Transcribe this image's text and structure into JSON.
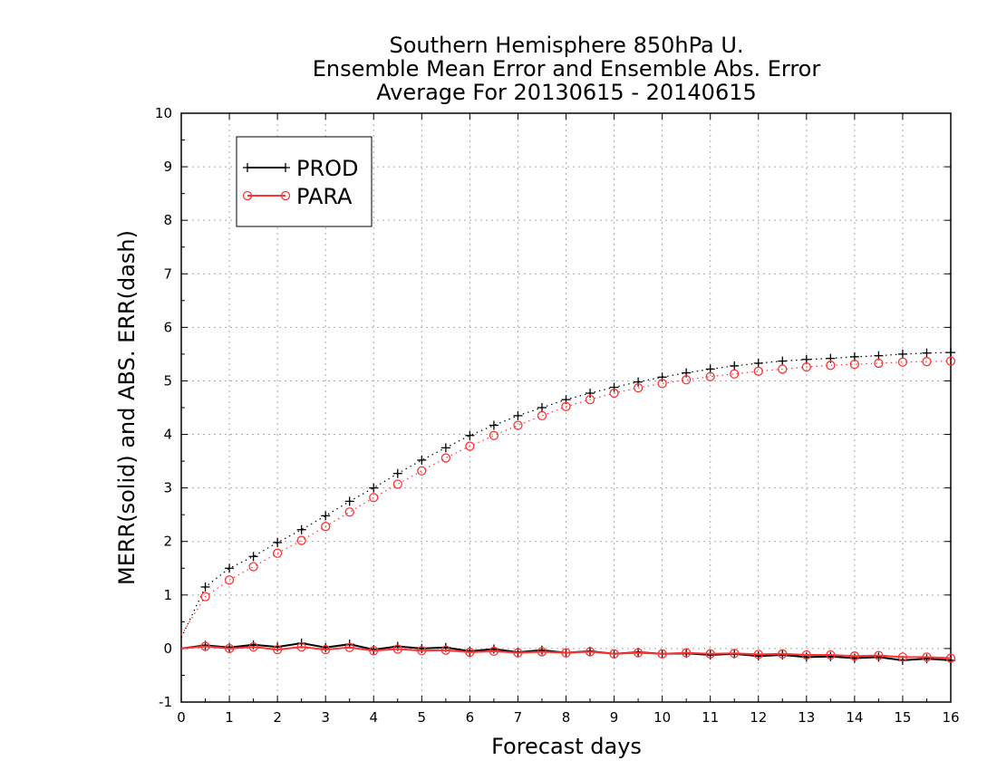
{
  "chart_data": {
    "type": "line",
    "title_lines": [
      "Southern Hemisphere 850hPa U.",
      "Ensemble Mean Error and Ensemble Abs. Error",
      "Average For 20130615 - 20140615"
    ],
    "xlabel": "Forecast days",
    "ylabel": "MERR(solid) and ABS. ERR(dash)",
    "xlim": [
      0,
      16
    ],
    "ylim": [
      -1,
      10
    ],
    "xticks": [
      0,
      1,
      2,
      3,
      4,
      5,
      6,
      7,
      8,
      9,
      10,
      11,
      12,
      13,
      14,
      15,
      16
    ],
    "yticks": [
      -1,
      0,
      1,
      2,
      3,
      4,
      5,
      6,
      7,
      8,
      9,
      10
    ],
    "grid": true,
    "legend_position": "top-left",
    "x": [
      0,
      0.5,
      1,
      1.5,
      2,
      2.5,
      3,
      3.5,
      4,
      4.5,
      5,
      5.5,
      6,
      6.5,
      7,
      7.5,
      8,
      8.5,
      9,
      9.5,
      10,
      10.5,
      11,
      11.5,
      12,
      12.5,
      13,
      13.5,
      14,
      14.5,
      15,
      15.5,
      16
    ],
    "series": [
      {
        "name": "PROD",
        "color": "#000000",
        "marker": "plus",
        "merr": [
          0,
          0.06,
          0.02,
          0.07,
          0.03,
          0.1,
          0.02,
          0.08,
          -0.02,
          0.04,
          0,
          0.02,
          -0.05,
          -0.01,
          -0.07,
          -0.03,
          -0.08,
          -0.05,
          -0.1,
          -0.07,
          -0.1,
          -0.09,
          -0.12,
          -0.1,
          -0.14,
          -0.12,
          -0.16,
          -0.15,
          -0.18,
          -0.16,
          -0.22,
          -0.19,
          -0.22
        ],
        "abs_err": [
          0.2,
          1.15,
          1.5,
          1.72,
          1.98,
          2.22,
          2.48,
          2.75,
          3.0,
          3.27,
          3.52,
          3.75,
          3.98,
          4.17,
          4.35,
          4.5,
          4.65,
          4.77,
          4.88,
          4.98,
          5.07,
          5.15,
          5.22,
          5.28,
          5.33,
          5.37,
          5.4,
          5.42,
          5.45,
          5.47,
          5.5,
          5.52,
          5.53
        ]
      },
      {
        "name": "PARA",
        "color": "#ff3333",
        "marker": "circle",
        "merr": [
          0,
          0.04,
          0,
          0.03,
          -0.02,
          0.03,
          -0.02,
          0.02,
          -0.04,
          -0.01,
          -0.04,
          -0.03,
          -0.07,
          -0.05,
          -0.08,
          -0.06,
          -0.08,
          -0.06,
          -0.1,
          -0.08,
          -0.1,
          -0.08,
          -0.1,
          -0.09,
          -0.11,
          -0.1,
          -0.12,
          -0.12,
          -0.14,
          -0.13,
          -0.16,
          -0.16,
          -0.18
        ],
        "abs_err": [
          0.25,
          0.97,
          1.28,
          1.53,
          1.78,
          2.02,
          2.28,
          2.55,
          2.82,
          3.07,
          3.32,
          3.56,
          3.78,
          3.98,
          4.17,
          4.35,
          4.52,
          4.65,
          4.77,
          4.87,
          4.95,
          5.02,
          5.08,
          5.13,
          5.18,
          5.22,
          5.26,
          5.29,
          5.31,
          5.33,
          5.35,
          5.36,
          5.37
        ]
      }
    ]
  }
}
